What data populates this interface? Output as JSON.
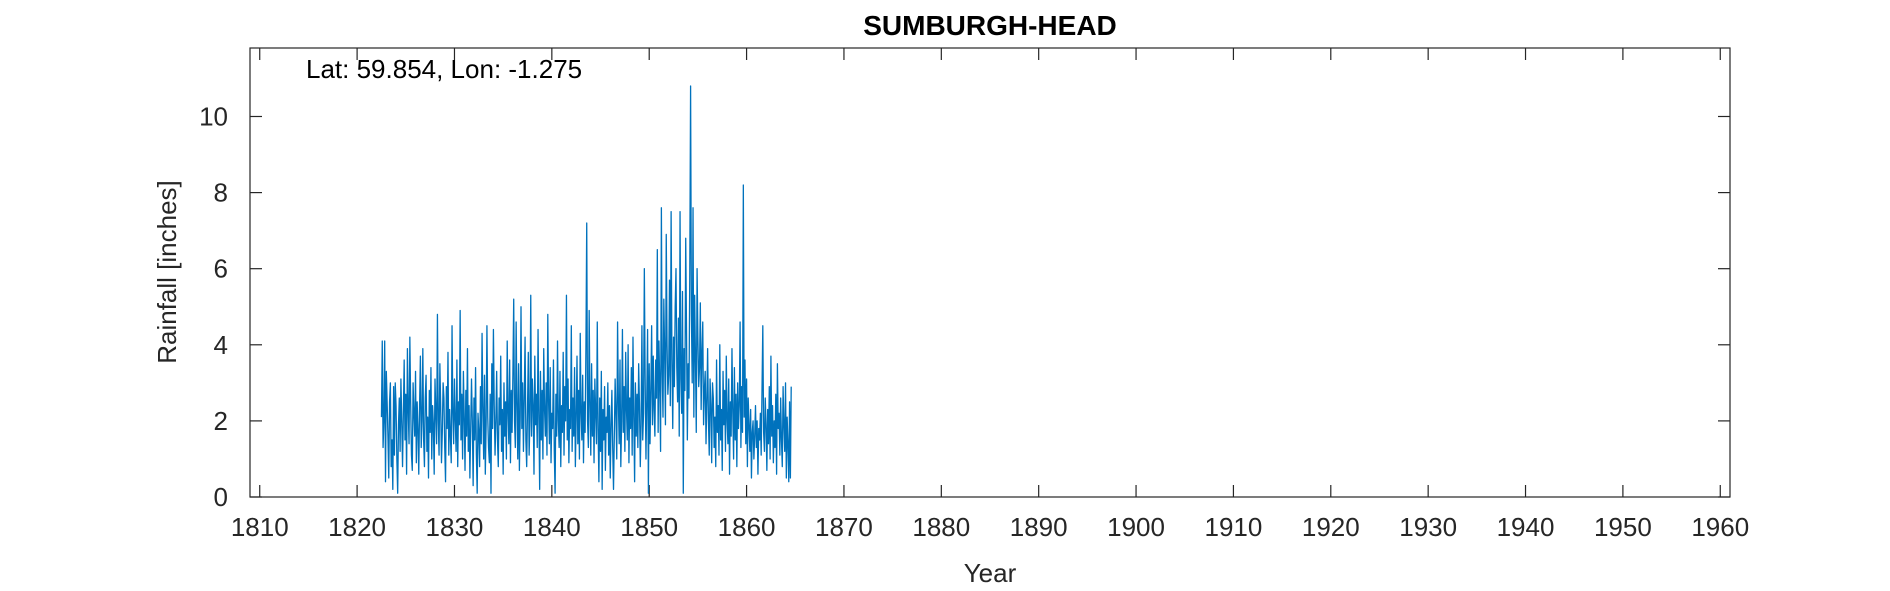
{
  "chart_data": {
    "type": "line",
    "title": "SUMBURGH-HEAD",
    "annotation": "Lat: 59.854, Lon: -1.275",
    "xlabel": "Year",
    "ylabel": "Rainfall [inches]",
    "xlim": [
      1809,
      1961
    ],
    "ylim": [
      0,
      11.8
    ],
    "xticks": [
      1810,
      1820,
      1830,
      1840,
      1850,
      1860,
      1870,
      1880,
      1890,
      1900,
      1910,
      1920,
      1930,
      1940,
      1950,
      1960
    ],
    "yticks": [
      0,
      2,
      4,
      6,
      8,
      10
    ],
    "xtick_labels": [
      "1810",
      "1820",
      "1830",
      "1840",
      "1850",
      "1860",
      "1870",
      "1880",
      "1890",
      "1900",
      "1910",
      "1920",
      "1930",
      "1940",
      "1950",
      "1960"
    ],
    "ytick_labels": [
      "0",
      "2",
      "4",
      "6",
      "8",
      "10"
    ],
    "grid": false,
    "series_color": "#0072BD",
    "series": [
      {
        "x_start": 1822.5,
        "x_step_months": 1,
        "values": [
          2.1,
          4.1,
          1.3,
          2.0,
          4.1,
          0.4,
          3.3,
          2.5,
          1.6,
          0.5,
          2.5,
          3.0,
          0.8,
          1.5,
          0.2,
          2.9,
          1.1,
          3.0,
          2.4,
          1.0,
          0.1,
          1.9,
          2.6,
          1.2,
          3.1,
          2.0,
          0.8,
          2.2,
          3.6,
          1.5,
          2.7,
          0.6,
          3.9,
          2.3,
          1.4,
          4.2,
          2.5,
          1.1,
          0.7,
          3.0,
          2.2,
          1.6,
          3.3,
          0.9,
          2.5,
          1.8,
          0.6,
          2.4,
          3.7,
          1.3,
          2.0,
          3.9,
          1.5,
          0.8,
          2.6,
          3.2,
          1.2,
          2.1,
          0.5,
          2.8,
          1.7,
          3.4,
          1.0,
          2.4,
          1.9,
          0.6,
          3.1,
          2.2,
          1.4,
          4.8,
          2.0,
          1.1,
          3.5,
          2.4,
          0.9,
          1.7,
          3.0,
          2.6,
          1.3,
          0.4,
          2.9,
          1.8,
          3.8,
          1.1,
          2.3,
          1.6,
          0.9,
          4.5,
          2.2,
          1.4,
          3.1,
          2.0,
          1.2,
          3.6,
          0.8,
          2.5,
          1.9,
          4.9,
          1.5,
          2.7,
          1.0,
          3.3,
          2.1,
          0.7,
          2.8,
          1.6,
          3.9,
          1.2,
          2.4,
          0.5,
          1.8,
          3.1,
          2.0,
          0.3,
          2.6,
          1.5,
          3.4,
          1.1,
          0.1,
          2.2,
          1.7,
          0.8,
          2.9,
          1.4,
          4.3,
          2.3,
          1.0,
          3.2,
          0.6,
          1.9,
          4.5,
          2.1,
          1.3,
          0.9,
          2.7,
          0.1,
          3.5,
          1.8,
          4.4,
          2.4,
          1.1,
          2.0,
          3.3,
          1.5,
          0.8,
          2.6,
          1.9,
          3.7,
          1.2,
          2.3,
          0.6,
          3.0,
          1.6,
          2.5,
          1.0,
          4.1,
          2.2,
          1.4,
          3.6,
          0.9,
          2.8,
          1.7,
          3.2,
          5.2,
          2.0,
          1.3,
          4.6,
          2.4,
          1.0,
          3.5,
          0.7,
          2.1,
          5.0,
          1.8,
          3.0,
          1.2,
          2.6,
          4.2,
          1.5,
          0.8,
          2.3,
          3.8,
          1.1,
          2.0,
          5.3,
          1.6,
          3.1,
          2.4,
          0.6,
          3.7,
          1.9,
          2.7,
          1.3,
          4.4,
          2.1,
          0.2,
          3.3,
          1.5,
          2.8,
          1.0,
          3.9,
          2.3,
          1.6,
          3.0,
          1.1,
          4.8,
          2.5,
          1.4,
          3.4,
          0.9,
          2.2,
          1.8,
          3.6,
          1.2,
          0.1,
          2.7,
          1.6,
          4.1,
          2.0,
          1.3,
          3.3,
          0.8,
          2.4,
          1.7,
          3.8,
          1.1,
          2.9,
          2.0,
          5.3,
          1.5,
          3.1,
          0.9,
          2.3,
          1.8,
          4.5,
          1.2,
          2.6,
          1.6,
          3.4,
          0.8,
          2.1,
          3.7,
          1.4,
          2.8,
          1.0,
          4.3,
          2.2,
          1.5,
          3.2,
          0.9,
          2.5,
          1.7,
          3.9,
          7.2,
          2.0,
          1.3,
          4.9,
          2.4,
          1.1,
          3.5,
          1.6,
          2.8,
          0.9,
          3.1,
          2.2,
          1.4,
          4.6,
          1.8,
          0.4,
          2.6,
          1.2,
          3.3,
          0.2,
          2.3,
          1.5,
          2.9,
          0.7,
          2.1,
          1.7,
          3.0,
          1.1,
          2.4,
          0.5,
          1.9,
          2.8,
          1.3,
          0.2,
          1.6,
          3.1,
          2.2,
          1.0,
          4.6,
          2.5,
          1.4,
          3.6,
          0.8,
          2.0,
          4.4,
          1.7,
          2.9,
          1.2,
          3.8,
          2.3,
          1.5,
          4.0,
          0.9,
          2.6,
          1.8,
          3.4,
          1.1,
          4.2,
          2.1,
          0.4,
          3.0,
          1.6,
          2.7,
          1.3,
          3.5,
          2.4,
          0.8,
          1.9,
          4.5,
          1.5,
          2.2,
          6.0,
          3.1,
          1.0,
          2.6,
          4.4,
          0.1,
          3.5,
          1.4,
          2.8,
          4.5,
          1.9,
          3.7,
          2.3,
          1.6,
          3.6,
          2.6,
          6.5,
          1.7,
          4.1,
          2.9,
          1.2,
          7.6,
          3.3,
          2.1,
          5.2,
          3.8,
          1.9,
          6.9,
          4.0,
          2.7,
          3.2,
          5.7,
          2.4,
          7.5,
          3.6,
          1.8,
          4.2,
          2.9,
          5.0,
          6.0,
          3.4,
          2.5,
          4.7,
          1.6,
          7.5,
          3.1,
          2.2,
          5.4,
          0.1,
          3.9,
          2.8,
          6.8,
          4.3,
          1.5,
          3.5,
          2.6,
          5.9,
          10.8,
          4.8,
          3.0,
          7.6,
          2.1,
          5.3,
          3.7,
          1.7,
          6.0,
          4.2,
          2.9,
          3.4,
          5.1,
          2.3,
          3.8,
          4.6,
          1.9,
          2.8,
          3.3,
          1.4,
          2.5,
          3.9,
          2.0,
          1.1,
          3.1,
          2.4,
          0.9,
          3.0,
          2.6,
          1.3,
          2.1,
          0.8,
          3.6,
          1.7,
          2.4,
          1.1,
          4.0,
          1.5,
          2.3,
          0.7,
          3.3,
          1.9,
          2.8,
          1.2,
          3.7,
          2.0,
          1.4,
          3.1,
          0.6,
          2.5,
          1.6,
          3.9,
          2.2,
          1.0,
          3.4,
          1.5,
          2.7,
          0.8,
          3.0,
          1.8,
          2.4,
          4.6,
          1.3,
          2.9,
          1.7,
          8.2,
          2.1,
          3.6,
          1.4,
          3.1,
          0.8,
          2.6,
          1.9,
          1.2,
          2.3,
          0.5,
          1.7,
          2.0,
          1.0,
          1.6,
          2.4,
          1.3,
          2.0,
          0.6,
          1.8,
          1.5,
          2.2,
          1.1,
          2.8,
          4.5,
          1.7,
          1.2,
          2.6,
          1.9,
          0.7,
          2.3,
          1.4,
          2.9,
          1.0,
          3.7,
          1.6,
          2.4,
          0.9,
          2.0,
          1.3,
          2.7,
          0.6,
          3.5,
          1.8,
          2.2,
          1.1,
          2.6,
          1.5,
          0.8,
          2.9,
          1.9,
          1.2,
          3.0,
          0.5,
          2.1,
          1.4,
          0.4,
          2.5,
          0.5,
          2.9
        ]
      }
    ]
  }
}
